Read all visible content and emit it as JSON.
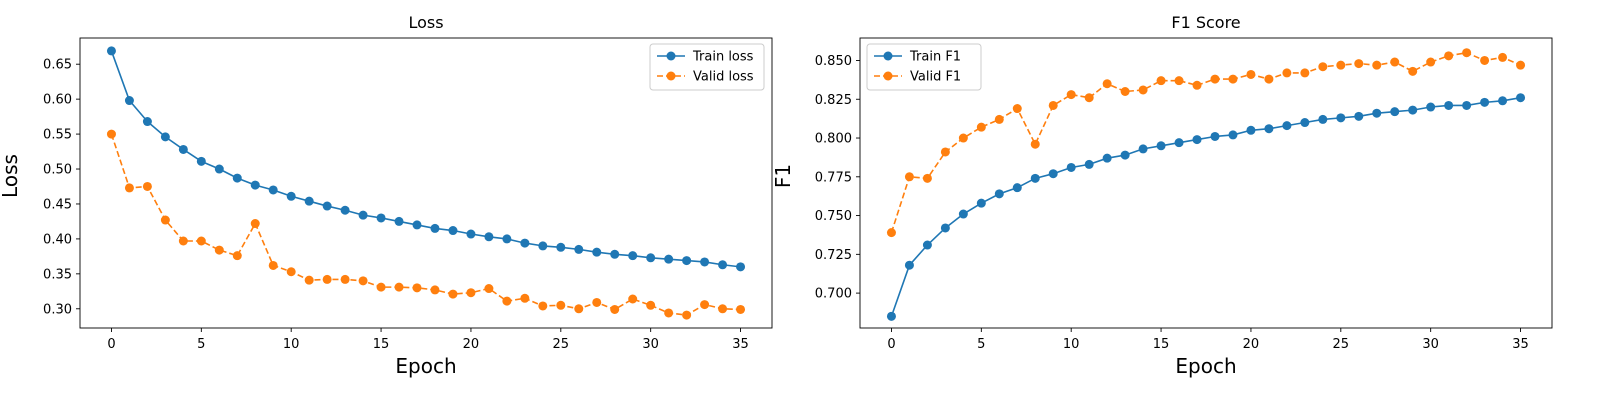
{
  "chart_data": [
    {
      "type": "line",
      "title": "Loss",
      "xlabel": "Epoch",
      "ylabel": "Loss",
      "xlim": [
        -1.75,
        36.75
      ],
      "ylim": [
        0.2725,
        0.6875
      ],
      "xticks": [
        0,
        5,
        10,
        15,
        20,
        25,
        30,
        35
      ],
      "yticks": [
        0.3,
        0.35,
        0.4,
        0.45,
        0.5,
        0.55,
        0.6,
        0.65
      ],
      "ytick_labels": [
        "0.30",
        "0.35",
        "0.40",
        "0.45",
        "0.50",
        "0.55",
        "0.60",
        "0.65"
      ],
      "grid": false,
      "legend_position": "upper right",
      "x": [
        0,
        1,
        2,
        3,
        4,
        5,
        6,
        7,
        8,
        9,
        10,
        11,
        12,
        13,
        14,
        15,
        16,
        17,
        18,
        19,
        20,
        21,
        22,
        23,
        24,
        25,
        26,
        27,
        28,
        29,
        30,
        31,
        32,
        33,
        34,
        35
      ],
      "series": [
        {
          "name": "Train loss",
          "color": "#1f77b4",
          "linestyle": "solid",
          "marker": "circle",
          "values": [
            0.669,
            0.598,
            0.568,
            0.546,
            0.528,
            0.511,
            0.5,
            0.487,
            0.477,
            0.47,
            0.461,
            0.454,
            0.447,
            0.441,
            0.434,
            0.43,
            0.425,
            0.42,
            0.415,
            0.412,
            0.407,
            0.403,
            0.4,
            0.394,
            0.39,
            0.388,
            0.385,
            0.381,
            0.378,
            0.376,
            0.373,
            0.371,
            0.369,
            0.367,
            0.363,
            0.36
          ]
        },
        {
          "name": "Valid loss",
          "color": "#ff7f0e",
          "linestyle": "dashed",
          "marker": "circle",
          "values": [
            0.55,
            0.473,
            0.475,
            0.427,
            0.397,
            0.397,
            0.384,
            0.376,
            0.422,
            0.362,
            0.353,
            0.341,
            0.342,
            0.342,
            0.34,
            0.331,
            0.331,
            0.33,
            0.327,
            0.321,
            0.323,
            0.329,
            0.311,
            0.315,
            0.304,
            0.305,
            0.3,
            0.309,
            0.299,
            0.314,
            0.305,
            0.294,
            0.291,
            0.306,
            0.3,
            0.299
          ]
        }
      ]
    },
    {
      "type": "line",
      "title": "F1 Score",
      "xlabel": "Epoch",
      "ylabel": "F1",
      "xlim": [
        -1.75,
        36.75
      ],
      "ylim": [
        0.6775,
        0.8645
      ],
      "xticks": [
        0,
        5,
        10,
        15,
        20,
        25,
        30,
        35
      ],
      "yticks": [
        0.7,
        0.725,
        0.75,
        0.775,
        0.8,
        0.825,
        0.85
      ],
      "ytick_labels": [
        "0.700",
        "0.725",
        "0.750",
        "0.775",
        "0.800",
        "0.825",
        "0.850"
      ],
      "grid": false,
      "legend_position": "upper left",
      "x": [
        0,
        1,
        2,
        3,
        4,
        5,
        6,
        7,
        8,
        9,
        10,
        11,
        12,
        13,
        14,
        15,
        16,
        17,
        18,
        19,
        20,
        21,
        22,
        23,
        24,
        25,
        26,
        27,
        28,
        29,
        30,
        31,
        32,
        33,
        34,
        35
      ],
      "series": [
        {
          "name": "Train F1",
          "color": "#1f77b4",
          "linestyle": "solid",
          "marker": "circle",
          "values": [
            0.685,
            0.718,
            0.731,
            0.742,
            0.751,
            0.758,
            0.764,
            0.768,
            0.774,
            0.777,
            0.781,
            0.783,
            0.787,
            0.789,
            0.793,
            0.795,
            0.797,
            0.799,
            0.801,
            0.802,
            0.805,
            0.806,
            0.808,
            0.81,
            0.812,
            0.813,
            0.814,
            0.816,
            0.817,
            0.818,
            0.82,
            0.821,
            0.821,
            0.823,
            0.824,
            0.826
          ]
        },
        {
          "name": "Valid F1",
          "color": "#ff7f0e",
          "linestyle": "dashed",
          "marker": "circle",
          "values": [
            0.739,
            0.775,
            0.774,
            0.791,
            0.8,
            0.807,
            0.812,
            0.819,
            0.796,
            0.821,
            0.828,
            0.826,
            0.835,
            0.83,
            0.831,
            0.837,
            0.837,
            0.834,
            0.838,
            0.838,
            0.841,
            0.838,
            0.842,
            0.842,
            0.846,
            0.847,
            0.848,
            0.847,
            0.849,
            0.843,
            0.849,
            0.853,
            0.855,
            0.85,
            0.852,
            0.847
          ]
        }
      ]
    }
  ]
}
